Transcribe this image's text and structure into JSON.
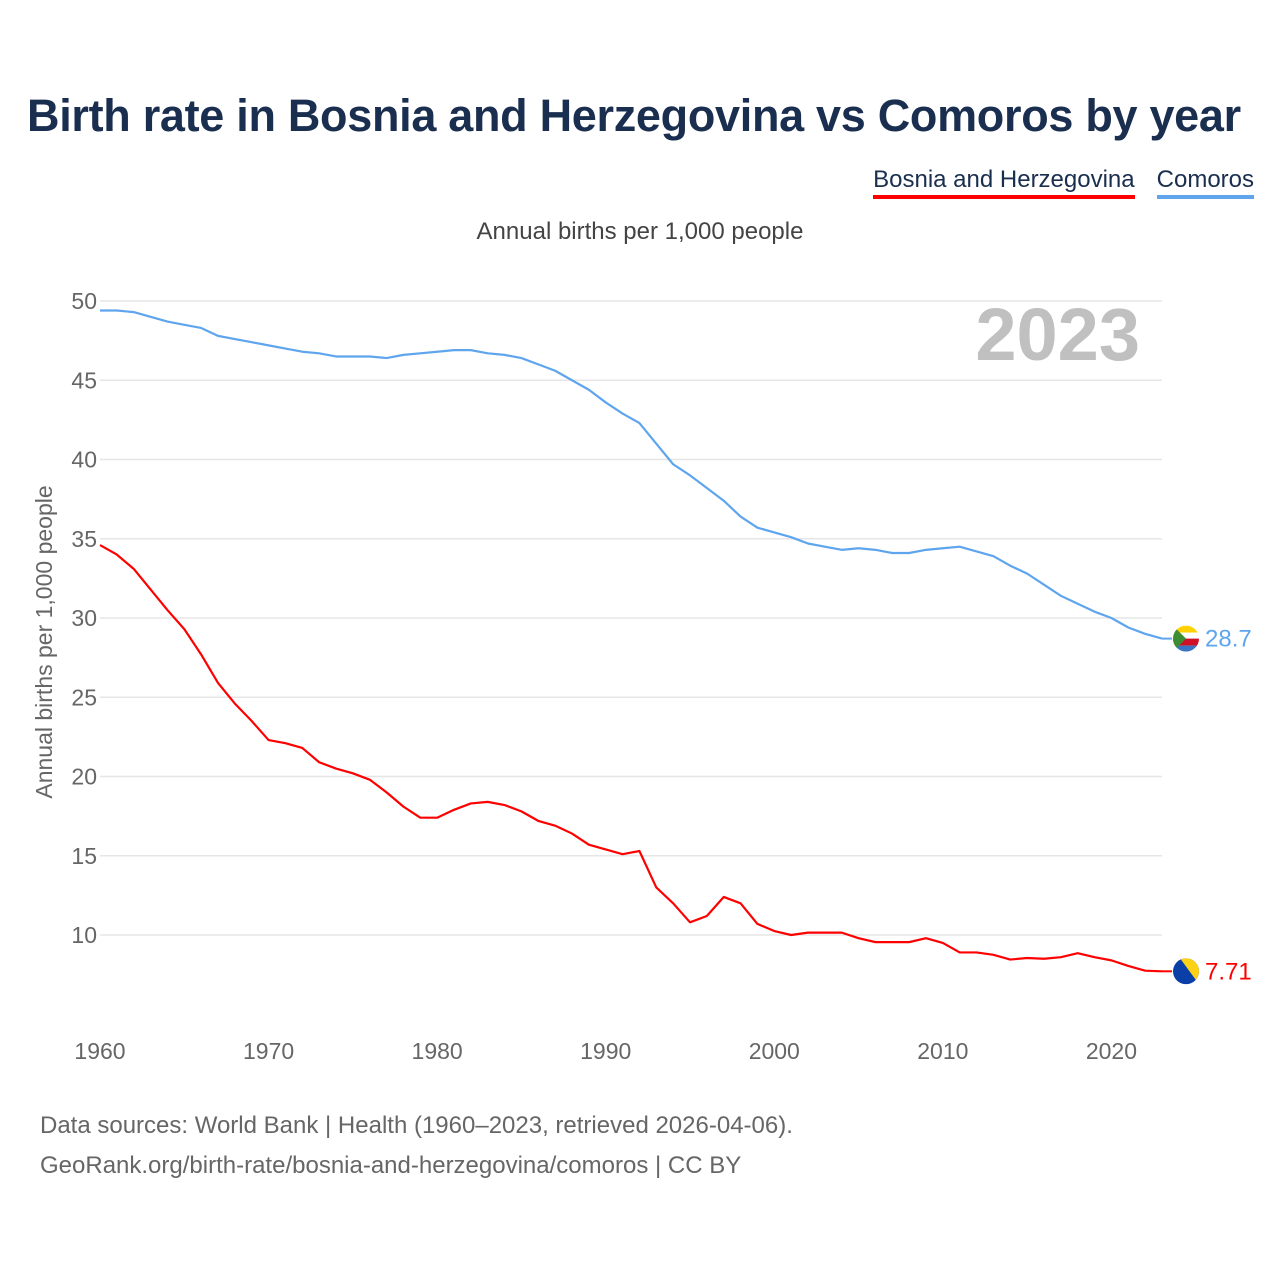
{
  "title": "Birth rate in Bosnia and Herzegovina vs Comoros by year",
  "legend": [
    {
      "label": "Bosnia and Herzegovina",
      "color": "#ff0000"
    },
    {
      "label": "Comoros",
      "color": "#5ea5ee"
    }
  ],
  "subtitle": "Annual births per 1,000 people",
  "footer": {
    "line1": "Data sources: World Bank | Health (1960–2023, retrieved 2026-04-06).",
    "line2": "GeoRank.org/birth-rate/bosnia-and-herzegovina/comoros | CC BY"
  },
  "chart_data": {
    "type": "line",
    "title": "Birth rate in Bosnia and Herzegovina vs Comoros by year",
    "xlabel": "",
    "ylabel": "Annual births per 1,000 people",
    "year_label": "2023",
    "xlim": [
      1960,
      2023
    ],
    "ylim": [
      5,
      50
    ],
    "x_ticks": [
      "1960",
      "1970",
      "1980",
      "1990",
      "2000",
      "2010",
      "2020"
    ],
    "y_ticks": [
      "10",
      "15",
      "20",
      "25",
      "30",
      "35",
      "40",
      "45",
      "50"
    ],
    "grid": true,
    "legend_position": "top-right",
    "x": [
      1960,
      1961,
      1962,
      1963,
      1964,
      1965,
      1966,
      1967,
      1968,
      1969,
      1970,
      1971,
      1972,
      1973,
      1974,
      1975,
      1976,
      1977,
      1978,
      1979,
      1980,
      1981,
      1982,
      1983,
      1984,
      1985,
      1986,
      1987,
      1988,
      1989,
      1990,
      1991,
      1992,
      1993,
      1994,
      1995,
      1996,
      1997,
      1998,
      1999,
      2000,
      2001,
      2002,
      2003,
      2004,
      2005,
      2006,
      2007,
      2008,
      2009,
      2010,
      2011,
      2012,
      2013,
      2014,
      2015,
      2016,
      2017,
      2018,
      2019,
      2020,
      2021,
      2022,
      2023
    ],
    "series": [
      {
        "name": "Bosnia and Herzegovina",
        "color": "#ff0000",
        "end_label": "7.71",
        "values": [
          34.6,
          34.0,
          33.1,
          31.8,
          30.5,
          29.3,
          27.7,
          25.9,
          24.6,
          23.5,
          22.3,
          22.1,
          21.8,
          20.9,
          20.5,
          20.2,
          19.8,
          19.0,
          18.1,
          17.4,
          17.4,
          17.9,
          18.3,
          18.4,
          18.2,
          17.8,
          17.2,
          16.9,
          16.4,
          15.7,
          15.4,
          15.1,
          15.3,
          13.0,
          12.0,
          10.8,
          11.2,
          12.4,
          12.0,
          10.7,
          10.25,
          10.0,
          10.15,
          10.15,
          10.15,
          9.8,
          9.55,
          9.55,
          9.55,
          9.8,
          9.5,
          8.9,
          8.9,
          8.75,
          8.45,
          8.55,
          8.5,
          8.6,
          8.85,
          8.6,
          8.4,
          8.05,
          7.75,
          7.71
        ]
      },
      {
        "name": "Comoros",
        "color": "#5ea5ee",
        "end_label": "28.7",
        "values": [
          49.4,
          49.4,
          49.3,
          49.0,
          48.7,
          48.5,
          48.3,
          47.8,
          47.6,
          47.4,
          47.2,
          47.0,
          46.8,
          46.7,
          46.5,
          46.5,
          46.5,
          46.4,
          46.6,
          46.7,
          46.8,
          46.9,
          46.9,
          46.7,
          46.6,
          46.4,
          46.0,
          45.6,
          45.0,
          44.4,
          43.6,
          42.9,
          42.3,
          41.0,
          39.7,
          39.0,
          38.2,
          37.4,
          36.4,
          35.7,
          35.4,
          35.1,
          34.7,
          34.5,
          34.3,
          34.4,
          34.3,
          34.1,
          34.1,
          34.3,
          34.4,
          34.5,
          34.2,
          33.9,
          33.3,
          32.8,
          32.1,
          31.4,
          30.9,
          30.4,
          30.0,
          29.4,
          29.0,
          28.7
        ]
      }
    ]
  }
}
